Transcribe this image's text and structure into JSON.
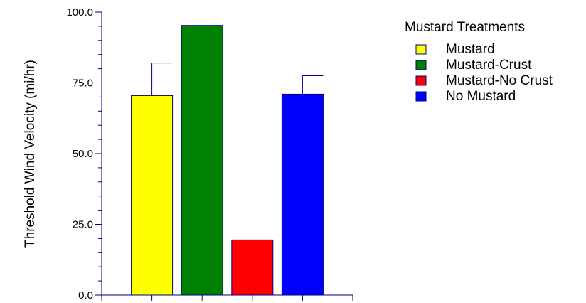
{
  "chart_data": {
    "type": "bar",
    "title": "",
    "xlabel": "",
    "ylabel": "Threshold Wind Velocity (mi/hr)",
    "ylim": [
      0,
      100
    ],
    "yticks": [
      "0.0",
      "25.0",
      "50.0",
      "75.0",
      "100.0"
    ],
    "ytick_values": [
      0,
      25,
      50,
      75,
      100
    ],
    "categories": [
      "Mustard",
      "Mustard-Crust",
      "Mustard-No Crust",
      "No Mustard"
    ],
    "values": [
      70.5,
      95.3,
      19.5,
      71.0
    ],
    "error_upper": [
      82.0,
      null,
      null,
      77.5
    ],
    "colors": [
      "#ffff00",
      "#008000",
      "#ff0000",
      "#0000ff"
    ],
    "edge_color": "#000080",
    "grid": false,
    "legend": {
      "title": "Mustard Treatments",
      "placement": "top-right",
      "entries": [
        "Mustard",
        "Mustard-Crust",
        "Mustard-No Crust",
        "No Mustard"
      ]
    }
  }
}
